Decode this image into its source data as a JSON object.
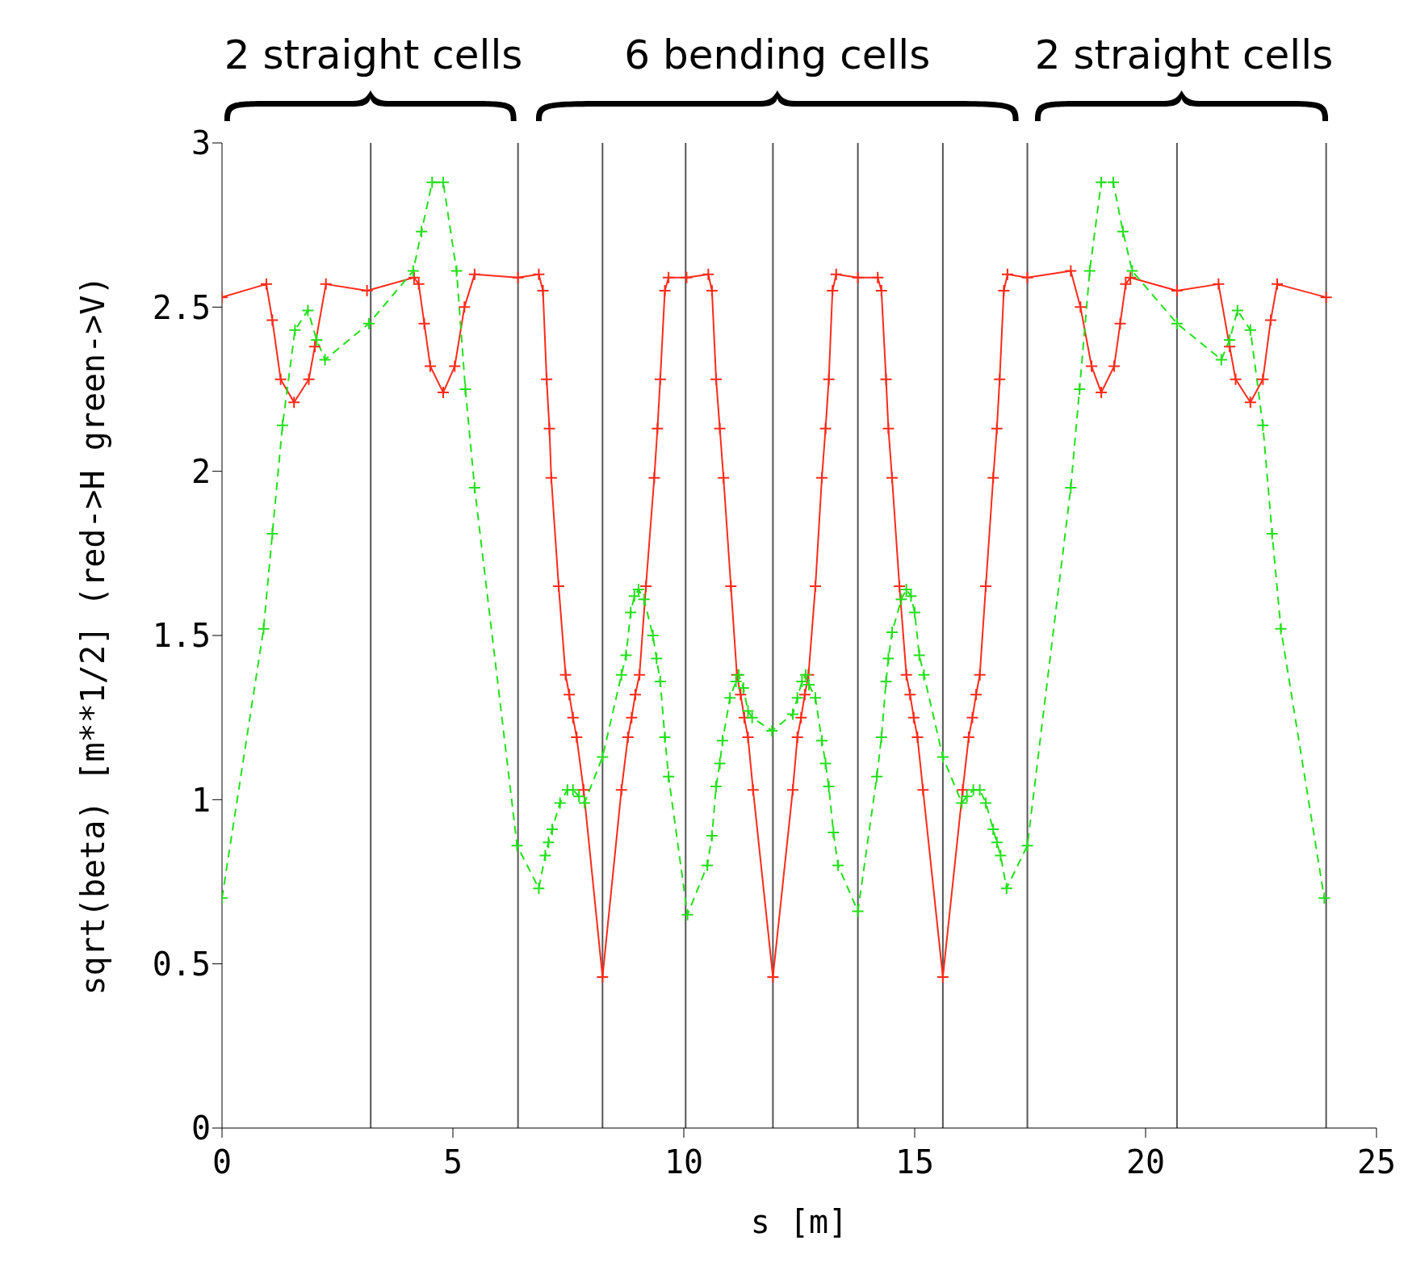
{
  "chart_data": {
    "type": "line",
    "xlabel": "s [m]",
    "ylabel": "sqrt(beta)  [m**1/2]  (red->H green->V)",
    "annotations": [
      "2 straight cells",
      "6 bending cells",
      "2 straight cells"
    ],
    "xlim": [
      0,
      25
    ],
    "xticks": [
      0,
      5,
      10,
      15,
      20,
      25
    ],
    "ylim": [
      0,
      3
    ],
    "yticks": [
      0,
      0.5,
      1,
      1.5,
      2,
      2.5,
      3
    ],
    "grid": false,
    "legend": false,
    "marker": "cross",
    "ref_lines": [
      {
        "axis": "x",
        "value": 3.22,
        "color": "#555555"
      },
      {
        "axis": "x",
        "value": 6.41,
        "color": "#555555"
      },
      {
        "axis": "x",
        "value": 8.24,
        "color": "#555555"
      },
      {
        "axis": "x",
        "value": 10.04,
        "color": "#555555"
      },
      {
        "axis": "x",
        "value": 11.93,
        "color": "#555555"
      },
      {
        "axis": "x",
        "value": 13.77,
        "color": "#555555"
      },
      {
        "axis": "x",
        "value": 15.61,
        "color": "#555555"
      },
      {
        "axis": "x",
        "value": 17.44,
        "color": "#555555"
      },
      {
        "axis": "x",
        "value": 20.68,
        "color": "#555555"
      },
      {
        "axis": "x",
        "value": 23.91,
        "color": "#555555"
      }
    ],
    "series": [
      {
        "color": "#ff2a1a",
        "line_style": "solid",
        "x": [
          0,
          0.96,
          1.09,
          1.27,
          1.56,
          1.88,
          2.01,
          2.25,
          3.14,
          4.16,
          4.26,
          4.38,
          4.51,
          4.79,
          5.04,
          5.25,
          5.47,
          6.41,
          6.86,
          6.95,
          7.03,
          7.09,
          7.13,
          7.29,
          7.44,
          7.52,
          7.6,
          7.68,
          7.83,
          8.24,
          8.65,
          8.79,
          8.87,
          8.95,
          9.04,
          9.18,
          9.36,
          9.43,
          9.49,
          9.59,
          9.67,
          10.06,
          10.53,
          10.61,
          10.7,
          10.78,
          10.86,
          11.02,
          11.15,
          11.23,
          11.31,
          11.39,
          11.5,
          11.93,
          12.36,
          12.46,
          12.54,
          12.62,
          12.7,
          12.85,
          12.99,
          13.07,
          13.14,
          13.22,
          13.3,
          13.77,
          14.2,
          14.28,
          14.38,
          14.43,
          14.51,
          14.67,
          14.82,
          14.9,
          14.98,
          15.06,
          15.18,
          15.61,
          16.04,
          16.17,
          16.25,
          16.33,
          16.41,
          16.54,
          16.7,
          16.78,
          16.84,
          16.93,
          17.01,
          17.44,
          18.38,
          18.59,
          18.83,
          19.04,
          19.32,
          19.45,
          19.57,
          19.67,
          20.68,
          21.58,
          21.82,
          21.95,
          22.27,
          22.54,
          22.71,
          22.85,
          23.91
        ],
        "values": [
          2.53,
          2.57,
          2.46,
          2.28,
          2.21,
          2.28,
          2.38,
          2.57,
          2.55,
          2.59,
          2.57,
          2.45,
          2.32,
          2.24,
          2.32,
          2.5,
          2.6,
          2.59,
          2.6,
          2.55,
          2.28,
          2.13,
          1.98,
          1.65,
          1.38,
          1.32,
          1.25,
          1.19,
          1.03,
          0.46,
          1.03,
          1.19,
          1.25,
          1.32,
          1.38,
          1.65,
          1.98,
          2.13,
          2.28,
          2.55,
          2.59,
          2.59,
          2.6,
          2.55,
          2.28,
          2.13,
          1.98,
          1.65,
          1.38,
          1.32,
          1.25,
          1.19,
          1.03,
          0.46,
          1.03,
          1.19,
          1.25,
          1.32,
          1.38,
          1.65,
          1.98,
          2.13,
          2.28,
          2.55,
          2.6,
          2.59,
          2.59,
          2.55,
          2.28,
          2.13,
          1.98,
          1.65,
          1.38,
          1.32,
          1.25,
          1.19,
          1.03,
          0.46,
          1.03,
          1.19,
          1.25,
          1.32,
          1.38,
          1.65,
          1.98,
          2.13,
          2.28,
          2.55,
          2.6,
          2.59,
          2.61,
          2.5,
          2.32,
          2.24,
          2.32,
          2.45,
          2.57,
          2.59,
          2.55,
          2.57,
          2.38,
          2.28,
          2.21,
          2.28,
          2.46,
          2.57,
          2.53
        ]
      },
      {
        "color": "#22e01a",
        "line_style": "dashed",
        "x": [
          0,
          0.9,
          1.09,
          1.31,
          1.58,
          1.86,
          2.05,
          2.23,
          3.18,
          4.14,
          4.32,
          4.55,
          4.79,
          5.08,
          5.27,
          5.47,
          6.39,
          6.86,
          7.0,
          7.07,
          7.15,
          7.32,
          7.48,
          7.6,
          7.73,
          7.85,
          8.24,
          8.65,
          8.75,
          8.85,
          8.93,
          9.02,
          9.14,
          9.33,
          9.41,
          9.49,
          9.59,
          9.67,
          10.08,
          10.51,
          10.61,
          10.7,
          10.78,
          10.84,
          11.0,
          11.13,
          11.19,
          11.29,
          11.39,
          11.48,
          11.91,
          12.36,
          12.46,
          12.56,
          12.64,
          12.71,
          12.85,
          12.99,
          13.07,
          13.14,
          13.24,
          13.34,
          13.77,
          14.18,
          14.28,
          14.38,
          14.43,
          14.51,
          14.71,
          14.82,
          14.92,
          15.0,
          15.1,
          15.2,
          15.61,
          16.02,
          16.13,
          16.27,
          16.41,
          16.54,
          16.7,
          16.78,
          16.86,
          16.99,
          17.44,
          18.38,
          18.57,
          18.79,
          19.04,
          19.3,
          19.51,
          19.71,
          20.68,
          21.64,
          21.82,
          21.99,
          22.27,
          22.54,
          22.74,
          22.93,
          23.87
        ],
        "values": [
          0.7,
          1.52,
          1.81,
          2.14,
          2.43,
          2.49,
          2.4,
          2.34,
          2.45,
          2.61,
          2.73,
          2.88,
          2.88,
          2.61,
          2.25,
          1.95,
          0.86,
          0.73,
          0.83,
          0.87,
          0.91,
          0.99,
          1.03,
          1.03,
          1.01,
          0.99,
          1.13,
          1.38,
          1.44,
          1.57,
          1.62,
          1.64,
          1.61,
          1.5,
          1.43,
          1.36,
          1.19,
          1.07,
          0.65,
          0.8,
          0.89,
          1.04,
          1.11,
          1.18,
          1.31,
          1.36,
          1.38,
          1.34,
          1.27,
          1.25,
          1.21,
          1.26,
          1.31,
          1.36,
          1.38,
          1.35,
          1.31,
          1.18,
          1.11,
          1.04,
          0.9,
          0.8,
          0.66,
          1.07,
          1.19,
          1.36,
          1.43,
          1.51,
          1.61,
          1.64,
          1.62,
          1.57,
          1.44,
          1.38,
          1.13,
          0.99,
          1.01,
          1.03,
          1.03,
          0.99,
          0.91,
          0.87,
          0.83,
          0.73,
          0.86,
          1.95,
          2.25,
          2.61,
          2.88,
          2.88,
          2.73,
          2.61,
          2.45,
          2.34,
          2.4,
          2.49,
          2.43,
          2.14,
          1.81,
          1.52,
          0.7
        ]
      }
    ]
  }
}
